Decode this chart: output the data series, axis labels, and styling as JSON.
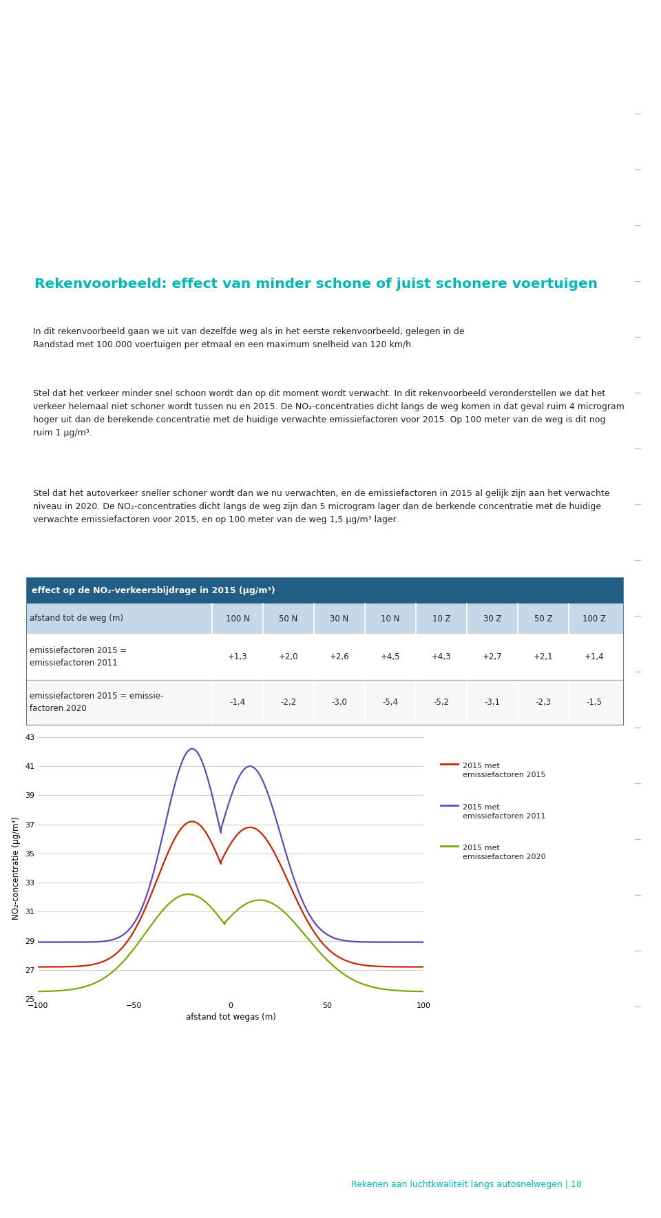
{
  "page_bg": "#ffffff",
  "yellow_bg": "#ffff00",
  "title_text": "Rekenvoorbeeld: effect van minder schone of juist schonere voertuigen",
  "title_color": "#00b8b8",
  "body1": "In dit rekenvoorbeeld gaan we uit van dezelfde weg als in het eerste rekenvoorbeeld, gelegen in de Randstad met 100.000 voertuigen per etmaal en een maximum snelheid van 120 km/h.",
  "body2a": "Stel dat het verkeer minder snel schoon wordt dan op dit moment wordt verwacht. In dit rekenvoorbeeld veronderstellen we dat het verkeer helemaal niet schoner wordt tussen nu en 2015. De NO",
  "body2b": "-concentraties dicht langs de weg komen in dat geval ruim 4 microgram hoger uit dan de berekende concentratie met de huidige verwachte emissiefactoren voor 2015. Op 100 meter van de weg is dit nog ruim 1 μg/m³.",
  "body3": "Stel dat het autoverkeer sneller schoner wordt dan we nu verwachten, en de emissiefactoren in 2015 al gelijk zijn aan het verwachte niveau in 2020. De NO₂-concentraties dicht langs de weg zijn dan 5 microgram lager dan de berkende concentratie met de huidige verwachte emissiefactoren voor 2015, en op 100 meter van de weg 1,5 μg/m³ lager.",
  "table_header_bg": "#215d84",
  "table_header_fg": "#ffffff",
  "table_header_title": "effect op de NO₂-verkeersbijdrage in 2015 (μg/m³)",
  "table_subheader_bg": "#c5d8e8",
  "table_cols": [
    "afstand tot de weg (m)",
    "100 N",
    "50 N",
    "30 N",
    "10 N",
    "10 Z",
    "30 Z",
    "50 Z",
    "100 Z"
  ],
  "table_row1_label": "emissiefactoren 2015 =\nemissiefactoren 2011",
  "table_row1_vals": [
    "+1,3",
    "+2,0",
    "+2,6",
    "+4,5",
    "+4,3",
    "+2,7",
    "+2,1",
    "+1,4"
  ],
  "table_row2_label": "emissiefactoren 2015 = emissie-\nfactoren 2020",
  "table_row2_vals": [
    "-1,4",
    "-2,2",
    "-3,0",
    "-5,4",
    "-5,2",
    "-3,1",
    "-2,3",
    "-1,5"
  ],
  "line1_color": "#cc2200",
  "line1_label": "2015 met\nemissiefactoren 2015",
  "line2_color": "#6644bb",
  "line2_label": "2015 met\nemissiefactoren 2011",
  "line3_color": "#77aa00",
  "line3_label": "2015 met\nemissiefactoren 2020",
  "xaxis_label": "afstand tot wegas (m)",
  "yaxis_label": "NO₂-concentratie (μg/m³)",
  "xlim": [
    -100,
    100
  ],
  "ylim": [
    25,
    43
  ],
  "yticks": [
    25,
    27,
    29,
    31,
    33,
    35,
    37,
    39,
    41,
    43
  ],
  "xticks": [
    -100,
    -50,
    0,
    50,
    100
  ],
  "footer_text": "Rekenen aan luchtkwaliteit langs autosnelwegen | 18",
  "footer_color": "#00b8b8"
}
